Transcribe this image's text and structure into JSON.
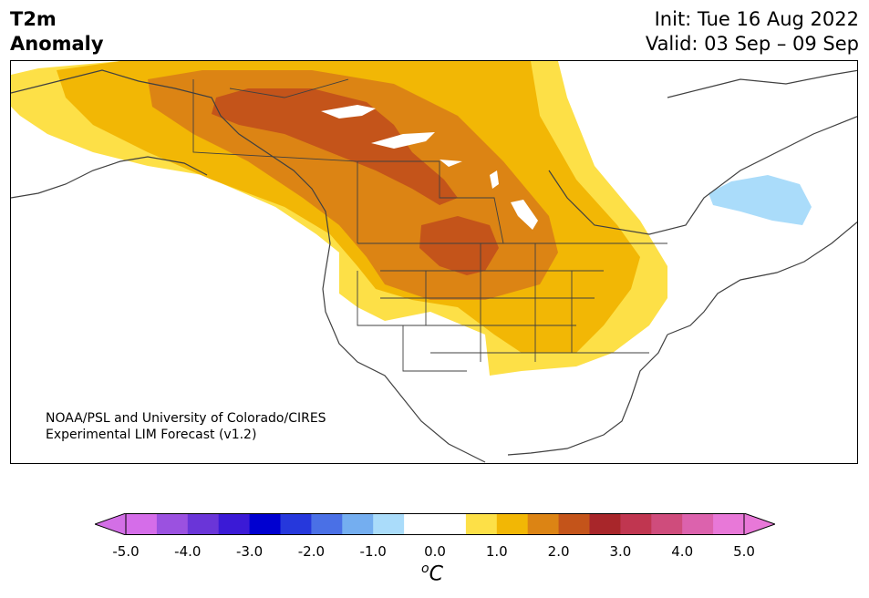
{
  "header": {
    "title_line1": "T2m",
    "title_line2": "Anomaly",
    "init": "Init: Tue 16 Aug 2022",
    "valid": "Valid: 03 Sep – 09 Sep"
  },
  "credit": {
    "line1": "NOAA/PSL and University of Colorado/CIRES",
    "line2": "Experimental LIM Forecast (v1.2)"
  },
  "colorbar": {
    "unit_sup": "o",
    "unit": "C",
    "ticks": [
      "-5.0",
      "-4.0",
      "-3.0",
      "-2.0",
      "-1.0",
      "0.0",
      "1.0",
      "2.0",
      "3.0",
      "4.0",
      "5.0"
    ],
    "colors": [
      "#d56de9",
      "#9b51e0",
      "#6a35d8",
      "#3b1ad6",
      "#0000d0",
      "#2638dc",
      "#4a70e6",
      "#74aef0",
      "#aadcfa",
      "#ffffff",
      "#ffffff",
      "#fde047",
      "#f2b705",
      "#dc8414",
      "#c4541a",
      "#a8262a",
      "#c03650",
      "#cf4c7c",
      "#dc62ad",
      "#e878d8"
    ],
    "extend_low_color": "#d36fe6",
    "extend_high_color": "#e878d8"
  },
  "map_colors": {
    "anom_0_5_to_1_0": "#fde047",
    "anom_1_0_to_1_5": "#f2b705",
    "anom_1_5_to_2_0": "#dc8414",
    "anom_2_0_to_2_5": "#c4541a",
    "anom_neg_0_5_to_neg_1_0": "#aadcfa",
    "coastline": "#404040"
  }
}
